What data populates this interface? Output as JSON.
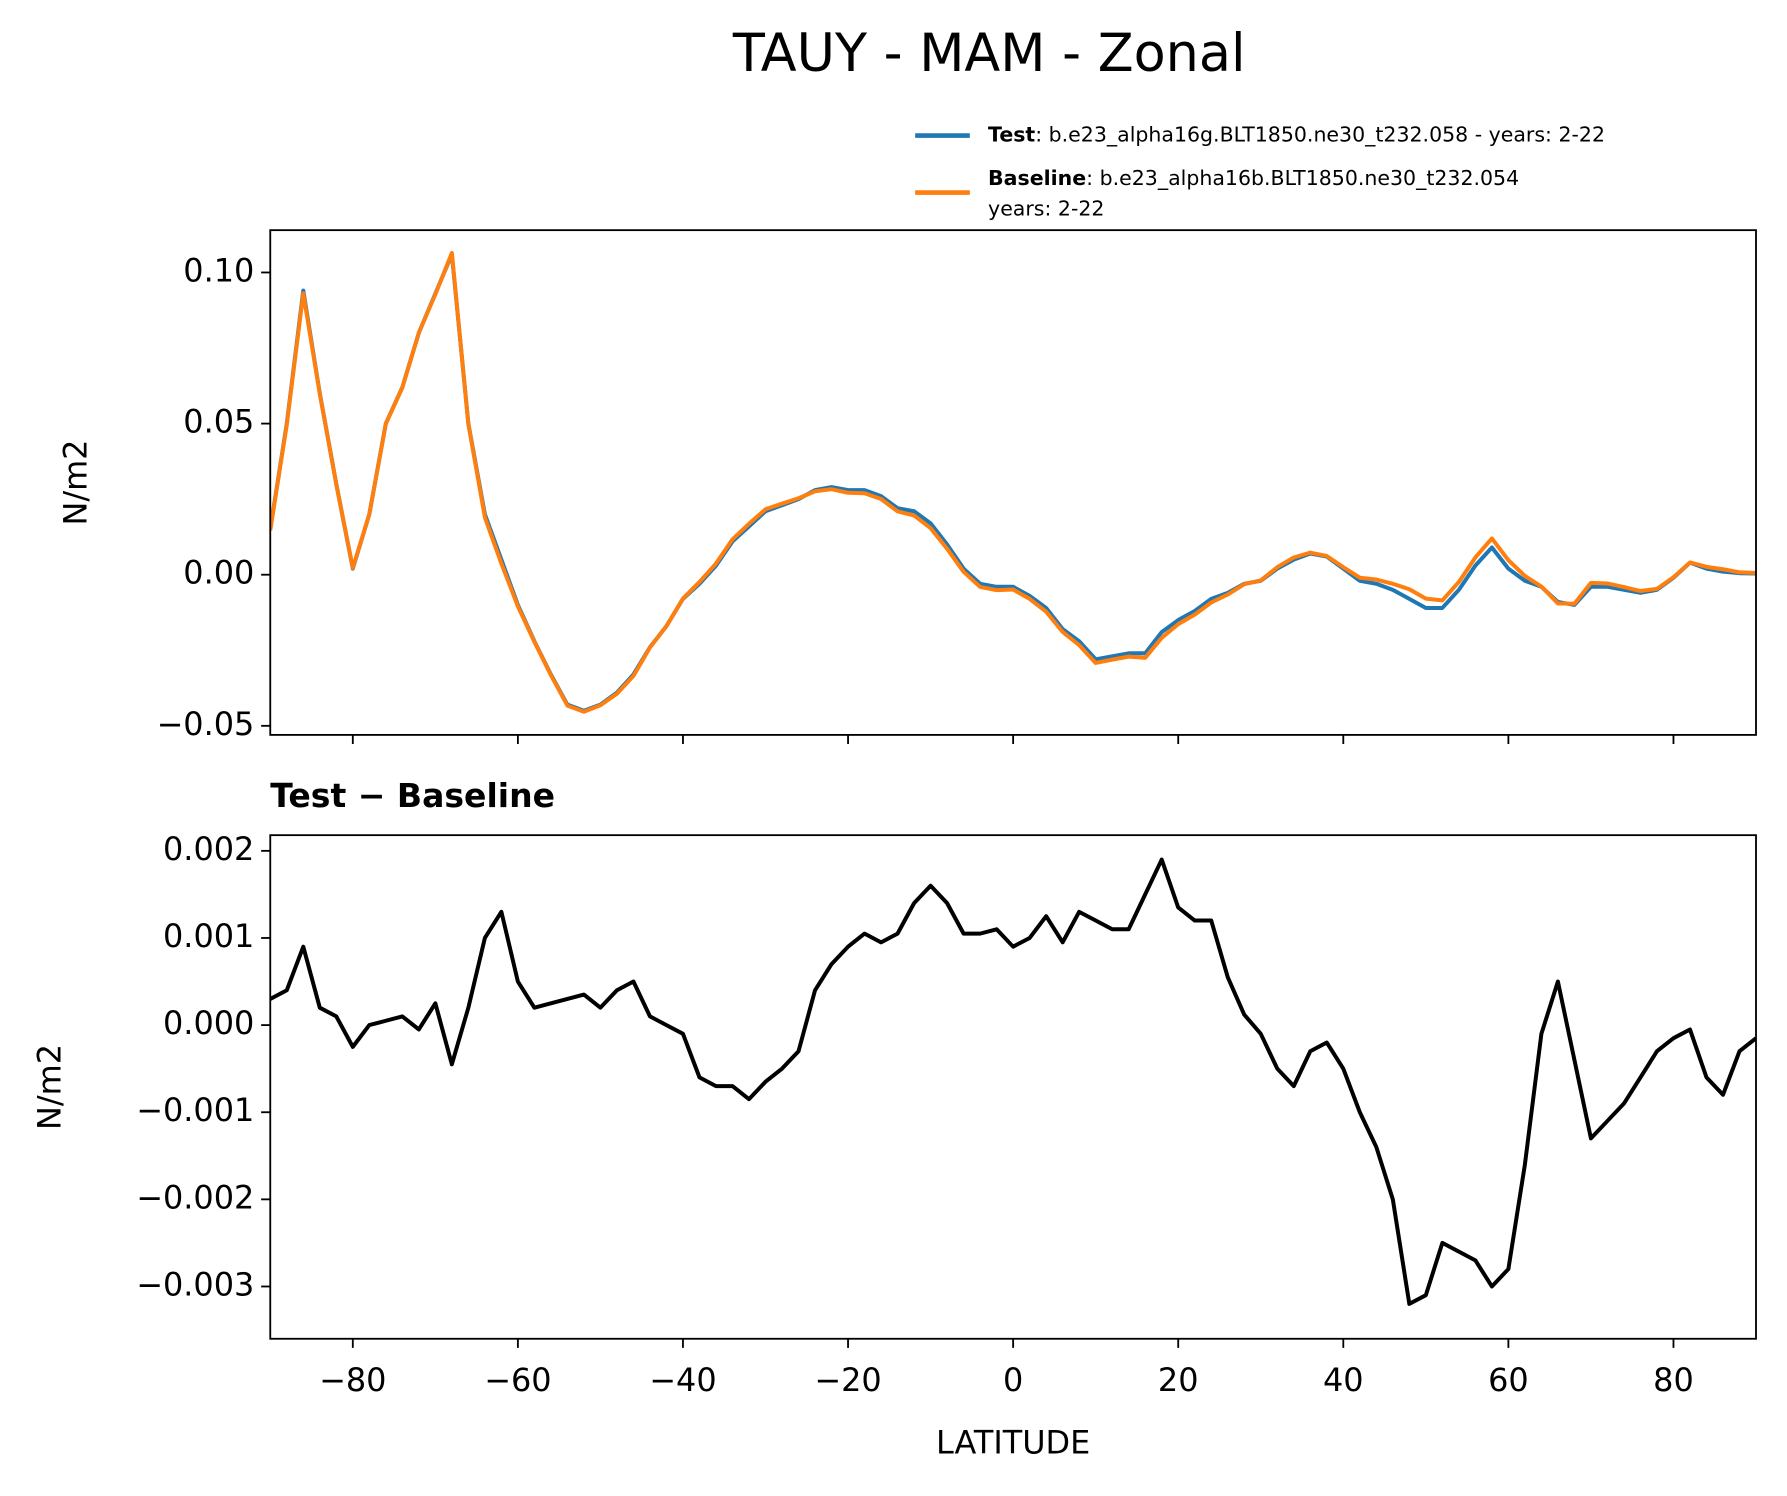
{
  "title": "TAUY - MAM - Zonal",
  "chart_data": [
    {
      "type": "line",
      "ylabel": "N/m2",
      "x": [
        -90,
        -88,
        -86,
        -84,
        -82,
        -80,
        -78,
        -76,
        -74,
        -72,
        -70,
        -68,
        -66,
        -64,
        -62,
        -60,
        -58,
        -56,
        -54,
        -52,
        -50,
        -48,
        -46,
        -44,
        -42,
        -40,
        -38,
        -36,
        -34,
        -32,
        -30,
        -28,
        -26,
        -24,
        -22,
        -20,
        -18,
        -16,
        -14,
        -12,
        -10,
        -8,
        -6,
        -4,
        -2,
        0,
        2,
        4,
        6,
        8,
        10,
        12,
        14,
        16,
        18,
        20,
        22,
        24,
        26,
        28,
        30,
        32,
        34,
        36,
        38,
        40,
        42,
        44,
        46,
        48,
        50,
        52,
        54,
        56,
        58,
        60,
        62,
        64,
        66,
        68,
        70,
        72,
        74,
        76,
        78,
        80,
        82,
        84,
        86,
        88,
        90
      ],
      "series": [
        {
          "name": "Test",
          "description": [
            ": b.e23_alpha16g.BLT1850.ne30_t232.058 - years: 2-22"
          ],
          "color": "#1f77b4",
          "values": [
            0.015,
            0.05,
            0.094,
            0.06,
            0.03,
            0.002,
            0.02,
            0.05,
            0.062,
            0.08,
            0.093,
            0.106,
            0.05,
            0.02,
            0.005,
            -0.01,
            -0.022,
            -0.033,
            -0.043,
            -0.045,
            -0.043,
            -0.039,
            -0.033,
            -0.024,
            -0.017,
            -0.008,
            -0.003,
            0.003,
            0.011,
            0.016,
            0.021,
            0.023,
            0.025,
            0.028,
            0.029,
            0.028,
            0.028,
            0.026,
            0.022,
            0.021,
            0.017,
            0.01,
            0.002,
            -0.003,
            -0.004,
            -0.004,
            -0.007,
            -0.011,
            -0.018,
            -0.022,
            -0.028,
            -0.027,
            -0.026,
            -0.026,
            -0.019,
            -0.015,
            -0.012,
            -0.008,
            -0.006,
            -0.003,
            -0.002,
            0.002,
            0.005,
            0.007,
            0.006,
            0.002,
            -0.002,
            -0.003,
            -0.005,
            -0.008,
            -0.011,
            -0.011,
            -0.005,
            0.003,
            0.009,
            0.002,
            -0.002,
            -0.004,
            -0.009,
            -0.01,
            -0.004,
            -0.004,
            -0.005,
            -0.006,
            -0.005,
            -0.001,
            0.004,
            0.002,
            0.001,
            0.0005,
            0.0004
          ]
        },
        {
          "name": "Baseline",
          "description": [
            ": b.e23_alpha16b.BLT1850.ne30_t232.054",
            "years: 2-22"
          ],
          "color": "#ff7f0e",
          "values": [
            0.0147,
            0.0496,
            0.0931,
            0.0598,
            0.0299,
            0.00225,
            0.02,
            0.04995,
            0.0619,
            0.08005,
            0.09275,
            0.10645,
            0.0498,
            0.019,
            0.0037,
            -0.0105,
            -0.0222,
            -0.03325,
            -0.0433,
            -0.04535,
            -0.0432,
            -0.0394,
            -0.0335,
            -0.0241,
            -0.017,
            -0.0079,
            -0.0024,
            0.0037,
            0.0117,
            0.01685,
            0.02165,
            0.0235,
            0.0253,
            0.0276,
            0.0283,
            0.0271,
            0.02695,
            0.02505,
            0.02095,
            0.0196,
            0.0154,
            0.0086,
            0.00095,
            -0.00405,
            -0.0051,
            -0.0049,
            -0.008,
            -0.01225,
            -0.01895,
            -0.0233,
            -0.0292,
            -0.0281,
            -0.0271,
            -0.0275,
            -0.0209,
            -0.01635,
            -0.0132,
            -0.0092,
            -0.00655,
            -0.00312,
            -0.0019,
            0.0025,
            0.0057,
            0.0073,
            0.0062,
            0.0025,
            -0.001,
            -0.0016,
            -0.003,
            -0.0048,
            -0.0079,
            -0.0085,
            -0.0024,
            0.0057,
            0.012,
            0.0048,
            -0.0004,
            -0.0039,
            -0.0095,
            -0.0096,
            -0.0027,
            -0.0029,
            -0.0041,
            -0.0054,
            -0.0047,
            -0.00085,
            0.00405,
            0.0026,
            0.0018,
            0.0008,
            0.00055
          ]
        }
      ],
      "xlim": [
        -90,
        90
      ],
      "xticks": [
        -80,
        -60,
        -40,
        -20,
        0,
        20,
        40,
        60,
        80
      ],
      "ylim": [
        -0.053,
        0.114
      ],
      "yticks": [
        {
          "value": -0.05,
          "label": "−0.05"
        },
        {
          "value": 0,
          "label": "0.00"
        },
        {
          "value": 0.05,
          "label": "0.05"
        },
        {
          "value": 0.1,
          "label": "0.10"
        }
      ],
      "legend": "upper right"
    },
    {
      "type": "line",
      "title": "Test − Baseline",
      "ylabel": "N/m2",
      "xlabel": "LATITUDE",
      "x": [
        -90,
        -88,
        -86,
        -84,
        -82,
        -80,
        -78,
        -76,
        -74,
        -72,
        -70,
        -68,
        -66,
        -64,
        -62,
        -60,
        -58,
        -56,
        -54,
        -52,
        -50,
        -48,
        -46,
        -44,
        -42,
        -40,
        -38,
        -36,
        -34,
        -32,
        -30,
        -28,
        -26,
        -24,
        -22,
        -20,
        -18,
        -16,
        -14,
        -12,
        -10,
        -8,
        -6,
        -4,
        -2,
        0,
        2,
        4,
        6,
        8,
        10,
        12,
        14,
        16,
        18,
        20,
        22,
        24,
        26,
        28,
        30,
        32,
        34,
        36,
        38,
        40,
        42,
        44,
        46,
        48,
        50,
        52,
        54,
        56,
        58,
        60,
        62,
        64,
        66,
        68,
        70,
        72,
        74,
        76,
        78,
        80,
        82,
        84,
        86,
        88,
        90
      ],
      "series": [
        {
          "color": "#000000",
          "values": [
            0.0003,
            0.0004,
            0.0009,
            0.0002,
            0.0001,
            -0.00025,
            0.0,
            5e-05,
            0.0001,
            -5e-05,
            0.00025,
            -0.00045,
            0.0002,
            0.001,
            0.0013,
            0.0005,
            0.0002,
            0.00025,
            0.0003,
            0.00035,
            0.0002,
            0.0004,
            0.0005,
            0.0001,
            0.0,
            -0.0001,
            -0.0006,
            -0.0007,
            -0.0007,
            -0.00085,
            -0.00065,
            -0.0005,
            -0.0003,
            0.0004,
            0.0007,
            0.0009,
            0.00105,
            0.00095,
            0.00105,
            0.0014,
            0.0016,
            0.0014,
            0.00105,
            0.00105,
            0.0011,
            0.0009,
            0.001,
            0.00125,
            0.00095,
            0.0013,
            0.0012,
            0.0011,
            0.0011,
            0.0015,
            0.0019,
            0.00135,
            0.0012,
            0.0012,
            0.00055,
            0.00012,
            -0.0001,
            -0.0005,
            -0.0007,
            -0.0003,
            -0.0002,
            -0.0005,
            -0.001,
            -0.0014,
            -0.002,
            -0.0032,
            -0.0031,
            -0.0025,
            -0.0026,
            -0.0027,
            -0.003,
            -0.0028,
            -0.0016,
            -0.0001,
            0.0005,
            -0.0004,
            -0.0013,
            -0.0011,
            -0.0009,
            -0.0006,
            -0.0003,
            -0.00015,
            -5e-05,
            -0.0006,
            -0.0008,
            -0.0003,
            -0.00015
          ]
        }
      ],
      "xlim": [
        -90,
        90
      ],
      "xticks": [
        {
          "value": -80,
          "label": "−80"
        },
        {
          "value": -60,
          "label": "−60"
        },
        {
          "value": -40,
          "label": "−40"
        },
        {
          "value": -20,
          "label": "−20"
        },
        0,
        20,
        40,
        60,
        80
      ],
      "ylim": [
        -0.0036,
        0.00218
      ],
      "yticks": [
        {
          "value": -0.003,
          "label": "−0.003"
        },
        {
          "value": -0.002,
          "label": "−0.002"
        },
        {
          "value": -0.001,
          "label": "−0.001"
        },
        {
          "value": 0,
          "label": "0.000"
        },
        {
          "value": 0.001,
          "label": "0.001"
        },
        {
          "value": 0.002,
          "label": "0.002"
        }
      ]
    }
  ]
}
